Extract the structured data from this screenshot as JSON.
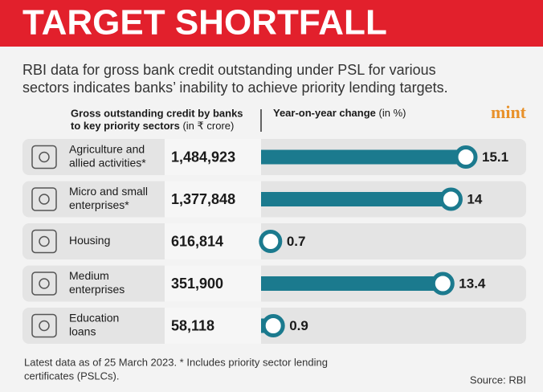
{
  "chart_data": {
    "type": "bar",
    "title": "TARGET SHORTFALL",
    "subtitle": [
      "RBI data for gross bank credit outstanding under PSL for various",
      "sectors indicates banks’ inability to achieve priority lending targets."
    ],
    "brand": "mint",
    "credit_header": [
      "Gross outstanding credit by banks",
      "to key priority sectors",
      "(in ₹ crore)"
    ],
    "change_header": [
      "Year-on-year change",
      "(in %)"
    ],
    "categories": [
      [
        "Agriculture and",
        "allied activities*"
      ],
      [
        "Micro and small",
        "enterprises*"
      ],
      [
        "Housing"
      ],
      [
        "Medium",
        "enterprises"
      ],
      [
        "Education",
        "loans"
      ]
    ],
    "outstanding_credit": [
      "1,484,923",
      "1,377,848",
      "616,814",
      "351,900",
      "58,118"
    ],
    "values": [
      15.1,
      14,
      0.7,
      13.4,
      0.9
    ],
    "color": "#1b7a8e",
    "footnote": [
      "Latest data as of 25 March 2023. * Includes priority sector lending",
      "certificates (PSLCs)."
    ],
    "source": "Source: RBI"
  }
}
